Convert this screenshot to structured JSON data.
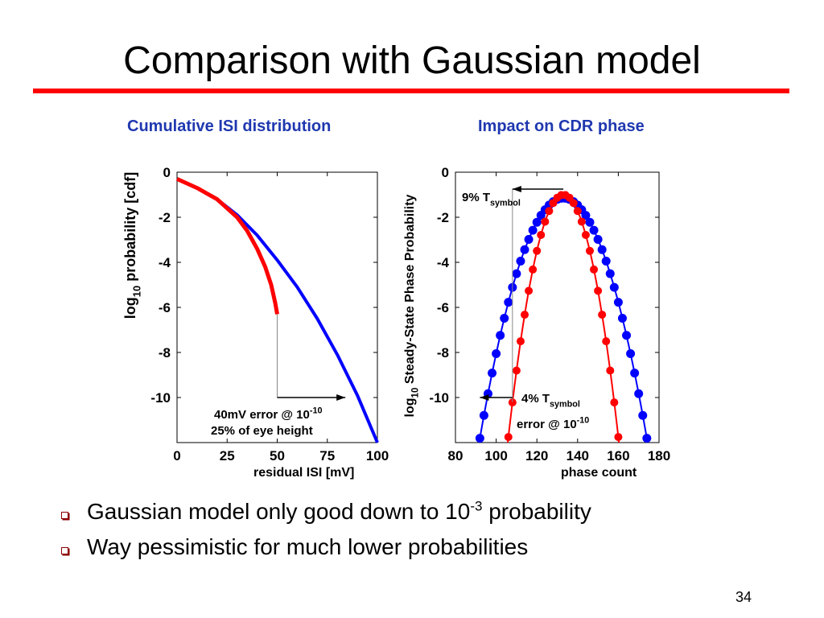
{
  "slide": {
    "title": "Comparison with Gaussian model",
    "bullets": [
      {
        "pre": "Gaussian model only good down to 10",
        "sup": "-3",
        "post": " probability"
      },
      {
        "pre": "Way pessimistic for much lower probabilities",
        "sup": "",
        "post": ""
      }
    ],
    "page_number": "34"
  },
  "colors": {
    "accent_rule": "#ff0000",
    "heading": "#1f38b0",
    "gaussian_series": "#0000ff",
    "actual_series": "#ff0000"
  },
  "chart_data": [
    {
      "type": "line",
      "title": "Cumulative ISI distribution",
      "xlabel": "residual ISI [mV]",
      "ylabel": {
        "pre": "log",
        "sub": "10",
        "post": " probability [cdf]"
      },
      "xlim": [
        0,
        100
      ],
      "ylim": [
        -12,
        0
      ],
      "xticks": [
        0,
        25,
        50,
        75,
        100
      ],
      "yticks": [
        0,
        -2,
        -4,
        -6,
        -8,
        -10
      ],
      "grid": false,
      "series": [
        {
          "color": "#0000ff",
          "x": [
            0,
            10,
            20,
            30,
            40,
            50,
            60,
            70,
            80,
            90,
            100
          ],
          "y": [
            -0.3,
            -0.7,
            -1.2,
            -1.9,
            -2.8,
            -3.9,
            -5.1,
            -6.5,
            -8.1,
            -9.9,
            -12.0
          ]
        },
        {
          "color": "#ff0000",
          "x": [
            0,
            10,
            20,
            30,
            35,
            40,
            44,
            47,
            49,
            50
          ],
          "y": [
            -0.3,
            -0.7,
            -1.2,
            -2.0,
            -2.6,
            -3.4,
            -4.2,
            -5.0,
            -5.8,
            -6.3
          ]
        }
      ],
      "annotation": {
        "arrow_from": [
          50,
          -10
        ],
        "arrow_to": [
          84,
          -10
        ],
        "drop_line_x": 50,
        "drop_line_from_y": -6.3,
        "line1_pre": "40mV error @ 10",
        "line1_sup": "-10",
        "line2": "25% of eye height"
      }
    },
    {
      "type": "scatter",
      "title": "Impact on CDR phase",
      "xlabel": "phase count",
      "ylabel": {
        "pre": "log",
        "sub": "10",
        "post": " Steady-State Phase Probability"
      },
      "xlim": [
        80,
        180
      ],
      "ylim": [
        -12,
        0
      ],
      "xticks": [
        80,
        100,
        120,
        140,
        160,
        180
      ],
      "yticks": [
        0,
        -2,
        -4,
        -6,
        -8,
        -10
      ],
      "grid": false,
      "series": [
        {
          "color": "#0000ff",
          "model": "parabola",
          "peak_x": 133,
          "peak_y": -1.15,
          "curvature": 0.00634,
          "x_range": [
            90,
            176
          ],
          "step": 2
        },
        {
          "color": "#ff0000",
          "model": "parabola",
          "peak_x": 133,
          "peak_y": -1.0,
          "curvature": 0.01475,
          "x_range": [
            104,
            162
          ],
          "step": 2
        }
      ],
      "annotations": [
        {
          "pre": "9% T",
          "sub": "symbol",
          "arrow_from": [
            133,
            -0.75
          ],
          "arrow_to": [
            108,
            -0.75
          ],
          "drop_line_x": 108
        },
        {
          "pre": "4% T",
          "sub": "symbol",
          "arrow_from": [
            108,
            -10
          ],
          "arrow_to": [
            92,
            -10
          ],
          "line2_pre": "error @ 10",
          "line2_sup": "-10"
        }
      ]
    }
  ]
}
